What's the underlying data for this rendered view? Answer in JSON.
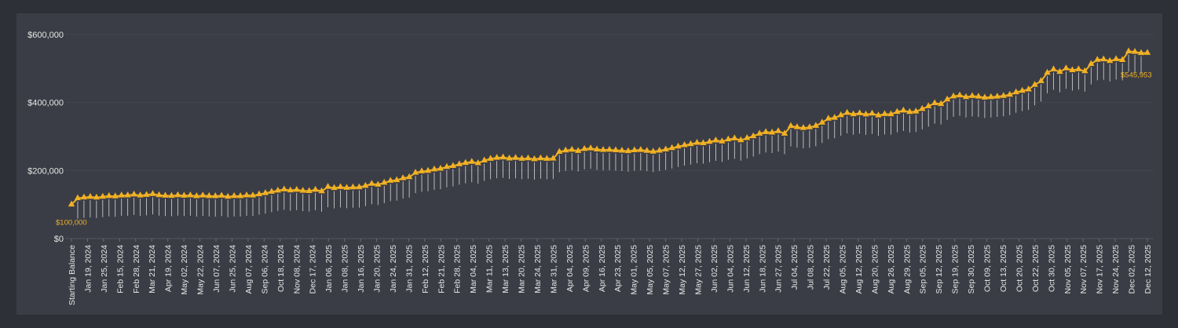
{
  "chart_data": {
    "type": "line",
    "title": "",
    "xlabel": "",
    "ylabel": "",
    "ylim": [
      0,
      600000
    ],
    "yticks": [
      "$0",
      "$200,000",
      "$400,000",
      "$600,000"
    ],
    "grid": true,
    "legend": "none",
    "colors": {
      "line": "#f1b124",
      "marker": "#f1b124",
      "stem": "#d8d8d8",
      "panel": "#3b3d46",
      "page": "#2e3038",
      "text": "#e6e6e6"
    },
    "x_tick_labels": [
      "Starting Balance",
      "Jan 19, 2024",
      "Jan 25, 2024",
      "Feb 15, 2024",
      "Feb 28, 2024",
      "Mar 21, 2024",
      "Apr 19, 2024",
      "May 02, 2024",
      "May 22, 2024",
      "Jun 07, 2024",
      "Jun 25, 2024",
      "Aug 07, 2024",
      "Sep 06, 2024",
      "Oct 18, 2024",
      "Nov 08, 2024",
      "Dec 17, 2024",
      "Jan 06, 2025",
      "Jan 08, 2025",
      "Jan 16, 2025",
      "Jan 20, 2025",
      "Jan 24, 2025",
      "Jan 31, 2025",
      "Feb 12, 2025",
      "Feb 21, 2025",
      "Feb 28, 2025",
      "Mar 04, 2025",
      "Mar 11, 2025",
      "Mar 13, 2025",
      "Mar 20, 2025",
      "Mar 24, 2025",
      "Mar 31, 2025",
      "Apr 04, 2025",
      "Apr 09, 2025",
      "Apr 16, 2025",
      "Apr 23, 2025",
      "May 01, 2025",
      "May 05, 2025",
      "May 07, 2025",
      "May 12, 2025",
      "May 27, 2025",
      "Jun 02, 2025",
      "Jun 04, 2025",
      "Jun 12, 2025",
      "Jun 18, 2025",
      "Jun 27, 2025",
      "Jul 04, 2025",
      "Jul 08, 2025",
      "Jul 22, 2025",
      "Aug 05, 2025",
      "Aug 12, 2025",
      "Aug 20, 2025",
      "Aug 26, 2025",
      "Aug 29, 2025",
      "Sep 05, 2025",
      "Sep 12, 2025",
      "Sep 19, 2025",
      "Sep 30, 2025",
      "Oct 09, 2025",
      "Oct 13, 2025",
      "Oct 20, 2025",
      "Oct 22, 2025",
      "Oct 30, 2025",
      "Nov 05, 2025",
      "Nov 07, 2025",
      "Nov 17, 2025",
      "Nov 24, 2025",
      "Dec 02, 2025",
      "Dec 12, 2025"
    ],
    "first_label": "$100,000",
    "last_label": "$545,953",
    "values": [
      100000,
      118500,
      121000,
      122500,
      120500,
      123000,
      125000,
      124000,
      126500,
      127000,
      129500,
      126500,
      128500,
      131000,
      127500,
      126000,
      125500,
      127500,
      126000,
      127000,
      124500,
      126500,
      125000,
      124500,
      126000,
      123000,
      125000,
      124500,
      127000,
      126500,
      130000,
      133500,
      137500,
      141000,
      144500,
      141500,
      143500,
      140500,
      139500,
      143500,
      139000,
      152000,
      148500,
      151500,
      149000,
      150500,
      151000,
      155000,
      161000,
      158500,
      164000,
      170000,
      171500,
      177500,
      180500,
      193500,
      197500,
      199000,
      203500,
      205500,
      210500,
      213500,
      218500,
      222500,
      225500,
      221500,
      229500,
      234500,
      237500,
      238500,
      235500,
      237000,
      234500,
      236000,
      233500,
      236000,
      234500,
      235000,
      255000,
      259000,
      261000,
      257500,
      263500,
      265000,
      262000,
      260500,
      261000,
      259500,
      258500,
      257000,
      259500,
      260500,
      258000,
      255500,
      258500,
      262000,
      266000,
      270500,
      274500,
      277500,
      281500,
      280500,
      284500,
      288500,
      285500,
      291500,
      294500,
      289000,
      295500,
      301000,
      308500,
      313000,
      311500,
      316000,
      308500,
      331000,
      327500,
      325000,
      327000,
      331500,
      341000,
      352500,
      355000,
      362500,
      369500,
      365500,
      368500,
      365000,
      367500,
      362000,
      366000,
      365500,
      372500,
      376500,
      372000,
      373500,
      381000,
      389000,
      398000,
      395500,
      409000,
      418000,
      421000,
      416000,
      419000,
      417500,
      414500,
      416000,
      417500,
      419500,
      423000,
      430000,
      434500,
      438500,
      452000,
      463000,
      487500,
      497500,
      490000,
      500500,
      495000,
      498000,
      492000,
      513500,
      525500,
      527000,
      522000,
      527500,
      525000,
      550500,
      549000,
      545500,
      545953
    ]
  }
}
